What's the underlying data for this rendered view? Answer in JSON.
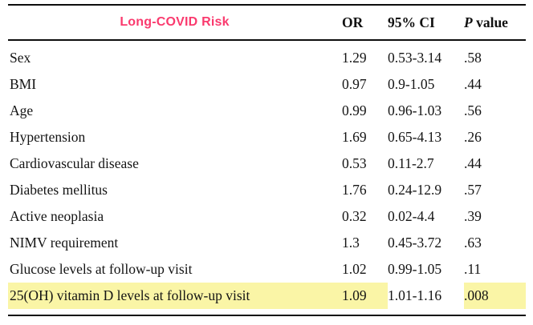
{
  "table": {
    "header": {
      "risk_factor": "Long-COVID Risk",
      "or": "OR",
      "ci": "95% CI",
      "p_italic": "P",
      "p_rest": " value"
    },
    "rows": [
      {
        "label": "Sex",
        "or": "1.29",
        "ci": "0.53-3.14",
        "p": ".58",
        "highlight": false
      },
      {
        "label": "BMI",
        "or": "0.97",
        "ci": "0.9-1.05",
        "p": ".44",
        "highlight": false
      },
      {
        "label": "Age",
        "or": "0.99",
        "ci": "0.96-1.03",
        "p": ".56",
        "highlight": false
      },
      {
        "label": "Hypertension",
        "or": "1.69",
        "ci": "0.65-4.13",
        "p": ".26",
        "highlight": false
      },
      {
        "label": "Cardiovascular disease",
        "or": "0.53",
        "ci": "0.11-2.7",
        "p": ".44",
        "highlight": false
      },
      {
        "label": "Diabetes mellitus",
        "or": "1.76",
        "ci": "0.24-12.9",
        "p": ".57",
        "highlight": false
      },
      {
        "label": "Active neoplasia",
        "or": "0.32",
        "ci": "0.02-4.4",
        "p": ".39",
        "highlight": false
      },
      {
        "label": "NIMV requirement",
        "or": "1.3",
        "ci": "0.45-3.72",
        "p": ".63",
        "highlight": false
      },
      {
        "label": "Glucose levels at follow-up visit",
        "or": "1.02",
        "ci": "0.99-1.05",
        "p": ".11",
        "highlight": false
      },
      {
        "label": "25(OH) vitamin D levels at follow-up visit",
        "or": "1.09",
        "ci": "1.01-1.16",
        "p": ".008",
        "highlight": true
      }
    ]
  },
  "colors": {
    "accent_pink": "#fa3a6e",
    "highlight_yellow": "#faf5a6",
    "text_ink": "#141414",
    "rule_black": "#0d0d0d"
  }
}
